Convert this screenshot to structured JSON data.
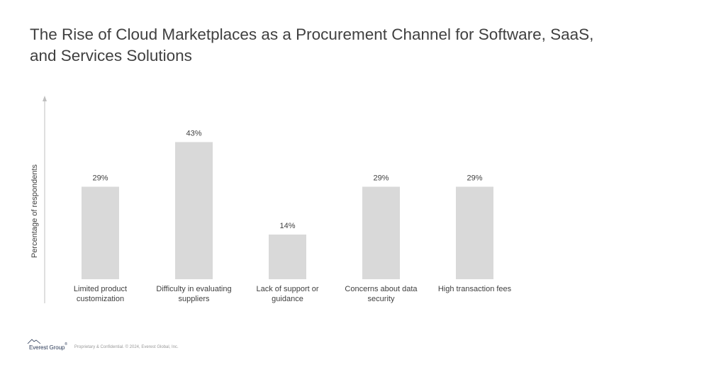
{
  "title": {
    "line1": "The Rise of Cloud Marketplaces as a Procurement Channel for Software, SaaS,",
    "line2": "and Services Solutions"
  },
  "chart_data": {
    "type": "bar",
    "ylabel": "Percentage of respondents",
    "xlabel": "",
    "ylim": [
      0,
      50
    ],
    "grid": false,
    "categories": [
      [
        "Limited product",
        "customization"
      ],
      [
        "Difficulty in evaluating",
        "suppliers"
      ],
      [
        "Lack of support or",
        "guidance"
      ],
      [
        "Concerns about data",
        "security"
      ],
      [
        "High transaction fees"
      ]
    ],
    "values": [
      29,
      43,
      14,
      29,
      29
    ],
    "value_labels": [
      "29%",
      "43%",
      "14%",
      "29%",
      "29%"
    ],
    "bar_color": "#d9d9d9",
    "axis_color": "#bfbfbf"
  },
  "footer": {
    "brand": "Everest Group",
    "brand_mark": "®",
    "copyright": "Proprietary & Confidential. © 2024, Everest Global, Inc."
  }
}
